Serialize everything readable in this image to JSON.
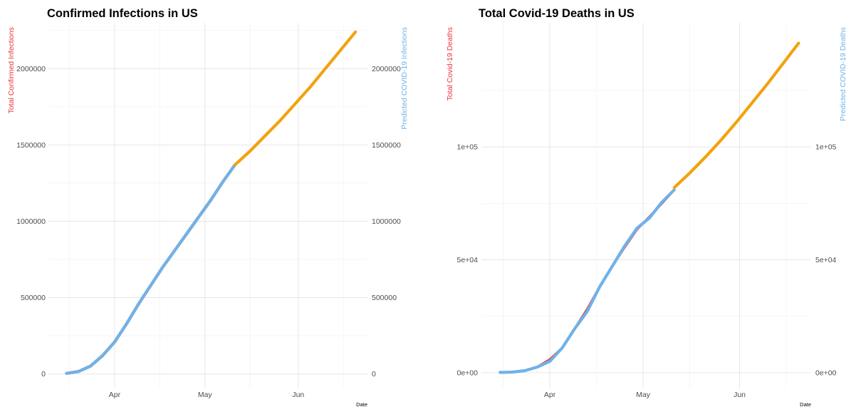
{
  "chart_data": [
    {
      "type": "line",
      "title": "Confirmed Infections in US",
      "xlabel": "Date",
      "ylabel": "Total Confirmed Infections",
      "ylabel_right": "Predicted COVID-19 Infections",
      "x_ticks": [
        "Apr",
        "May",
        "Jun"
      ],
      "y_ticks": [
        "0",
        "500000",
        "1000000",
        "1500000",
        "2000000"
      ],
      "y_ticks_right": [
        "0",
        "500000",
        "1000000",
        "1500000",
        "2000000"
      ],
      "ylim": [
        -95000,
        2300000
      ],
      "grid": true,
      "series": [
        {
          "color": "#e8353b",
          "x": [
            "2020-03-16",
            "2020-03-20",
            "2020-03-24",
            "2020-03-28",
            "2020-04-01",
            "2020-04-05",
            "2020-04-09",
            "2020-04-13",
            "2020-04-17",
            "2020-04-21",
            "2020-04-25",
            "2020-04-29",
            "2020-05-03",
            "2020-05-07",
            "2020-05-11"
          ],
          "y": [
            4000,
            16000,
            52000,
            120000,
            210000,
            330000,
            460000,
            580000,
            700000,
            810000,
            920000,
            1030000,
            1140000,
            1260000,
            1370000
          ]
        },
        {
          "color": "#6fb2e8",
          "x": [
            "2020-03-16",
            "2020-03-20",
            "2020-03-24",
            "2020-03-28",
            "2020-04-01",
            "2020-04-05",
            "2020-04-09",
            "2020-04-13",
            "2020-04-17",
            "2020-04-21",
            "2020-04-25",
            "2020-04-29",
            "2020-05-03",
            "2020-05-07",
            "2020-05-11"
          ],
          "y": [
            4000,
            16000,
            52000,
            120000,
            210000,
            330000,
            460000,
            580000,
            700000,
            810000,
            920000,
            1030000,
            1140000,
            1260000,
            1370000
          ]
        },
        {
          "color": "#f2a20d",
          "x": [
            "2020-05-11",
            "2020-05-16",
            "2020-05-21",
            "2020-05-26",
            "2020-05-31",
            "2020-06-05",
            "2020-06-10",
            "2020-06-15",
            "2020-06-20"
          ],
          "y": [
            1370000,
            1460000,
            1560000,
            1660000,
            1770000,
            1880000,
            2000000,
            2120000,
            2240000
          ]
        }
      ]
    },
    {
      "type": "line",
      "title": "Total Covid-19 Deaths in US",
      "xlabel": "Date",
      "ylabel": "Total Covid-19 Deaths",
      "ylabel_right": "Predicted COVID-19 Deaths",
      "x_ticks": [
        "Apr",
        "May",
        "Jun"
      ],
      "y_ticks": [
        "0e+00",
        "5e+04",
        "1e+05"
      ],
      "y_ticks_right": [
        "0e+00",
        "5e+04",
        "1e+05"
      ],
      "ylim": [
        -7000,
        155000
      ],
      "grid": true,
      "series": [
        {
          "color": "#e8353b",
          "x": [
            "2020-03-16",
            "2020-03-20",
            "2020-03-24",
            "2020-03-28",
            "2020-04-01",
            "2020-04-05",
            "2020-04-09",
            "2020-04-13",
            "2020-04-17",
            "2020-04-21",
            "2020-04-25",
            "2020-04-29",
            "2020-05-03",
            "2020-05-07",
            "2020-05-11"
          ],
          "y": [
            100,
            250,
            900,
            2500,
            5800,
            11000,
            19500,
            28000,
            38000,
            47000,
            55500,
            63500,
            69000,
            75000,
            81000
          ]
        },
        {
          "color": "#6fb2e8",
          "x": [
            "2020-03-16",
            "2020-03-20",
            "2020-03-24",
            "2020-03-28",
            "2020-04-01",
            "2020-04-05",
            "2020-04-09",
            "2020-04-13",
            "2020-04-17",
            "2020-04-21",
            "2020-04-25",
            "2020-04-29",
            "2020-05-03",
            "2020-05-07",
            "2020-05-11"
          ],
          "y": [
            100,
            250,
            900,
            2500,
            5000,
            11000,
            19500,
            27000,
            38000,
            47000,
            56000,
            64000,
            68500,
            75500,
            81000
          ]
        },
        {
          "color": "#f2a20d",
          "x": [
            "2020-05-11",
            "2020-05-16",
            "2020-05-21",
            "2020-05-26",
            "2020-05-31",
            "2020-06-05",
            "2020-06-10",
            "2020-06-15",
            "2020-06-20"
          ],
          "y": [
            82000,
            88500,
            95500,
            103000,
            111000,
            119500,
            128000,
            137000,
            146000
          ]
        }
      ]
    }
  ]
}
